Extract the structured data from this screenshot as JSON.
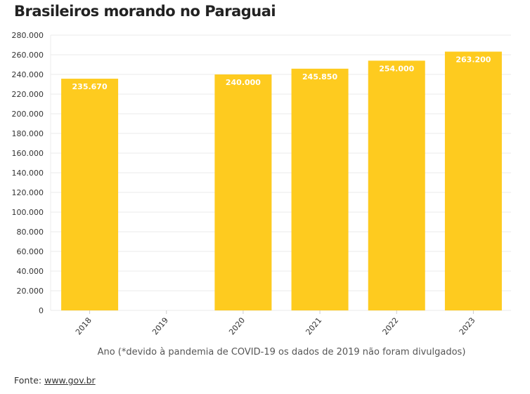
{
  "title": "Brasileiros morando no Paraguai",
  "source_label": "Fonte:",
  "source_link": "www.gov.br",
  "chart_data": {
    "type": "bar",
    "categories": [
      "2018",
      "2019",
      "2020",
      "2021",
      "2022",
      "2023"
    ],
    "values": [
      235670,
      null,
      240000,
      245850,
      254000,
      263200
    ],
    "data_labels": [
      "235.670",
      "",
      "240.000",
      "245.850",
      "254.000",
      "263.200"
    ],
    "xlabel": "Ano (*devido à pandemia de COVID-19 os dados de 2019 não foram divulgados)",
    "ylabel": "",
    "ylim": [
      0,
      280000
    ],
    "yticks": [
      "0",
      "20.000",
      "40.000",
      "60.000",
      "80.000",
      "100.000",
      "120.000",
      "140.000",
      "160.000",
      "180.000",
      "200.000",
      "220.000",
      "240.000",
      "260.000",
      "280.000"
    ],
    "grid": true,
    "bar_color": "#fecb1f",
    "label_color": "#ffffff"
  }
}
